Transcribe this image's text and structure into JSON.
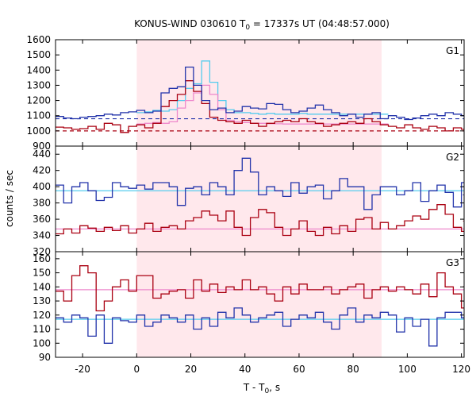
{
  "chart_data": {
    "type": "line",
    "title_parts": {
      "pre": "KONUS-WIND 030610 T",
      "sub": "0",
      "post": " = 17337s UT (04:48:57.000)"
    },
    "xlabel_parts": {
      "pre": "T - T",
      "sub": "0",
      "post": ", s"
    },
    "ylabel": "counts / sec",
    "xlim": [
      -30,
      121
    ],
    "xticks": [
      -20,
      0,
      20,
      40,
      60,
      80,
      100,
      120
    ],
    "highlight": {
      "x0": 0,
      "x1": 90.5,
      "color": "#ffe8ec"
    },
    "colors": {
      "blue": "#2233aa",
      "red": "#aa0011",
      "lightblue": "#55ccee",
      "pink": "#ee88cc",
      "axis": "#000000"
    },
    "panels": [
      {
        "label": "G1",
        "ylim": [
          900,
          1600
        ],
        "yticks": [
          900,
          1000,
          1100,
          1200,
          1300,
          1400,
          1500,
          1600
        ],
        "step": 3,
        "x0": -30,
        "blue_series": [
          1095,
          1085,
          1080,
          1090,
          1095,
          1100,
          1110,
          1105,
          1120,
          1125,
          1135,
          1120,
          1130,
          1250,
          1280,
          1290,
          1420,
          1300,
          1200,
          1140,
          1150,
          1120,
          1130,
          1160,
          1150,
          1145,
          1180,
          1175,
          1140,
          1120,
          1130,
          1150,
          1170,
          1140,
          1120,
          1100,
          1110,
          1090,
          1110,
          1120,
          1080,
          1100,
          1090,
          1075,
          1085,
          1100,
          1110,
          1100,
          1120,
          1110,
          1100
        ],
        "red_series": [
          1025,
          1020,
          1010,
          1015,
          1030,
          1010,
          1050,
          1040,
          990,
          1030,
          1040,
          1020,
          1050,
          1160,
          1200,
          1240,
          1330,
          1260,
          1180,
          1090,
          1070,
          1060,
          1050,
          1070,
          1050,
          1030,
          1050,
          1060,
          1070,
          1060,
          1080,
          1060,
          1050,
          1030,
          1040,
          1050,
          1060,
          1050,
          1080,
          1060,
          1040,
          1030,
          1020,
          1040,
          1020,
          1010,
          1030,
          1020,
          1000,
          1020,
          1010
        ],
        "lightblue_series": {
          "x0": 0,
          "step": 3,
          "values": [
            1120,
            1125,
            1135,
            1130,
            1140,
            1200,
            1280,
            1310,
            1460,
            1320,
            1200,
            1140,
            1120,
            1120,
            1115,
            1110,
            1115,
            1110,
            1110,
            1110,
            1115,
            1110,
            1110,
            1110,
            1110,
            1110,
            1110,
            1110,
            1110,
            1110,
            1110
          ]
        },
        "pink_series": {
          "x0": 0,
          "step": 3,
          "values": [
            1045,
            1050,
            1055,
            1050,
            1060,
            1150,
            1200,
            1250,
            1300,
            1240,
            1140,
            1070,
            1060,
            1055,
            1050,
            1050,
            1048,
            1047,
            1045,
            1045,
            1045,
            1045,
            1045,
            1045,
            1045,
            1045,
            1045,
            1045,
            1045,
            1045,
            1045
          ]
        },
        "blue_bg": 1080,
        "red_bg": 1000,
        "bg_style": "dashed"
      },
      {
        "label": "G2",
        "ylim": [
          320,
          450
        ],
        "yticks": [
          320,
          340,
          360,
          380,
          400,
          420,
          440
        ],
        "step": 3,
        "x0": -30,
        "blue_series": [
          402,
          380,
          400,
          405,
          395,
          383,
          387,
          405,
          400,
          398,
          402,
          397,
          405,
          405,
          400,
          377,
          398,
          400,
          390,
          405,
          400,
          390,
          420,
          435,
          418,
          390,
          400,
          395,
          388,
          405,
          392,
          400,
          402,
          385,
          395,
          410,
          400,
          400,
          372,
          390,
          400,
          400,
          390,
          395,
          405,
          382,
          395,
          402,
          393,
          375,
          405,
          400,
          390,
          405,
          412,
          395,
          418,
          388,
          398,
          412,
          395,
          415,
          410,
          402,
          395
        ],
        "red_series": [
          342,
          348,
          343,
          352,
          349,
          345,
          350,
          346,
          352,
          343,
          348,
          355,
          345,
          350,
          352,
          348,
          358,
          362,
          370,
          365,
          358,
          370,
          350,
          340,
          362,
          372,
          368,
          350,
          340,
          348,
          358,
          345,
          340,
          350,
          342,
          352,
          345,
          360,
          362,
          348,
          356,
          348,
          352,
          358,
          364,
          360,
          372,
          378,
          366,
          350,
          345,
          358,
          372,
          360,
          368,
          370,
          352,
          352,
          370,
          360,
          365,
          348,
          340,
          350,
          345
        ],
        "blue_bg": 395,
        "red_bg": 348,
        "bg_style": "solid"
      },
      {
        "label": "G3",
        "ylim": [
          90,
          165
        ],
        "yticks": [
          90,
          100,
          110,
          120,
          130,
          140,
          150,
          160
        ],
        "step": 3,
        "x0": -30,
        "blue_series": [
          118,
          115,
          120,
          118,
          105,
          120,
          100,
          118,
          116,
          115,
          120,
          112,
          115,
          120,
          118,
          115,
          120,
          110,
          118,
          112,
          122,
          118,
          125,
          120,
          115,
          118,
          120,
          122,
          112,
          117,
          120,
          118,
          122,
          115,
          110,
          120,
          125,
          115,
          120,
          118,
          122,
          120,
          108,
          118,
          112,
          117,
          98,
          118,
          122,
          122,
          118,
          115,
          110,
          120,
          118,
          122,
          118,
          113,
          122,
          118,
          115,
          123,
          120,
          118,
          112
        ],
        "red_series": [
          137,
          130,
          148,
          155,
          150,
          123,
          130,
          140,
          145,
          137,
          148,
          148,
          132,
          135,
          137,
          138,
          132,
          145,
          137,
          142,
          136,
          140,
          138,
          145,
          138,
          140,
          135,
          130,
          140,
          135,
          142,
          138,
          138,
          140,
          135,
          138,
          140,
          142,
          132,
          138,
          140,
          137,
          140,
          138,
          135,
          142,
          133,
          150,
          140,
          135,
          125,
          140,
          130,
          145,
          138,
          140,
          135,
          133,
          140,
          138,
          130,
          140,
          135,
          130,
          148
        ],
        "blue_bg": 117,
        "red_bg": 138,
        "bg_style": "solid"
      }
    ]
  }
}
